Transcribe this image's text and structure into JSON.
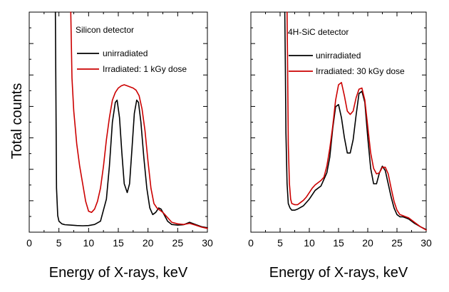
{
  "chart_data": [
    {
      "type": "line",
      "title": "Silicon detector",
      "xlabel": "Energy of X-rays, keV",
      "ylabel": "Total counts",
      "xlim": [
        0,
        30
      ],
      "ylim": [
        0,
        100
      ],
      "xticks": [
        0,
        5,
        10,
        15,
        20,
        25,
        30
      ],
      "y_tick_labels_shown": false,
      "legend_position": "upper-right",
      "series": [
        {
          "name": "unirradiated",
          "color": "#000000",
          "x": [
            4.4,
            4.5,
            4.6,
            4.8,
            5.0,
            5.5,
            6,
            7,
            8,
            9,
            10,
            11,
            12,
            13,
            13.5,
            14,
            14.5,
            14.8,
            15.2,
            15.6,
            16,
            16.5,
            16.9,
            17.3,
            17.7,
            18.1,
            18.4,
            18.8,
            19.3,
            19.8,
            20.3,
            20.8,
            21.3,
            21.8,
            22.2,
            22.7,
            23.3,
            24,
            25,
            26,
            27,
            28,
            29,
            30
          ],
          "values": [
            100,
            60,
            20,
            7.5,
            5.0,
            3.8,
            3.4,
            3.2,
            3.0,
            2.9,
            3.0,
            3.5,
            5,
            15,
            30,
            50,
            59,
            60,
            52,
            36,
            22,
            18,
            22,
            38,
            54,
            60,
            59,
            50,
            34,
            20,
            11,
            8,
            9,
            11,
            10.5,
            8,
            5,
            3.5,
            3.2,
            3.4,
            4.5,
            3.5,
            2.5,
            2.0
          ]
        },
        {
          "name": "Irradiated: 1 kGy dose",
          "color": "#cc0000",
          "x": [
            7.0,
            7.2,
            7.5,
            8,
            8.5,
            9,
            9.5,
            10,
            10.5,
            11,
            11.5,
            12,
            12.5,
            13,
            13.5,
            14,
            14.5,
            15,
            15.5,
            16,
            16.5,
            17,
            17.5,
            18,
            18.5,
            19,
            19.5,
            20,
            20.5,
            21,
            21.5,
            22,
            22.5,
            23,
            24,
            25,
            26,
            27,
            28,
            29,
            30
          ],
          "values": [
            100,
            70,
            55,
            40,
            30,
            22,
            14,
            9.5,
            9,
            10.5,
            14,
            20,
            30,
            42,
            52,
            60,
            63.5,
            65.5,
            66.5,
            67,
            66.5,
            66,
            65.5,
            64.5,
            62,
            56,
            46,
            32,
            20,
            13,
            11,
            10,
            9,
            7.5,
            4.5,
            3.8,
            3.5,
            4.0,
            3.2,
            2.3,
            1.7
          ]
        }
      ]
    },
    {
      "type": "line",
      "title": "4H-SiC detector",
      "xlabel": "Energy of X-rays, keV",
      "ylabel": "",
      "xlim": [
        0,
        30
      ],
      "ylim": [
        0,
        100
      ],
      "xticks": [
        0,
        5,
        10,
        15,
        20,
        25,
        30
      ],
      "y_tick_labels_shown": false,
      "legend_position": "upper-right",
      "series": [
        {
          "name": "unirradiated",
          "color": "#000000",
          "x": [
            5.8,
            5.9,
            6.0,
            6.2,
            6.4,
            6.7,
            7.0,
            7.5,
            8,
            9,
            10,
            11,
            12,
            13,
            13.5,
            14,
            14.5,
            15,
            15.5,
            16,
            16.5,
            17,
            17.5,
            18,
            18.5,
            19,
            19.5,
            20,
            20.5,
            21,
            21.5,
            22,
            22.5,
            23,
            23.5,
            24,
            24.5,
            25,
            25.5,
            26,
            26.5,
            27,
            28,
            29,
            30
          ],
          "values": [
            100,
            75,
            45,
            22,
            13,
            11,
            10,
            10,
            10.5,
            12,
            15,
            19,
            21,
            27,
            34,
            47,
            57,
            58,
            52,
            43,
            36,
            36,
            42,
            53,
            63,
            64,
            59,
            43,
            29,
            22,
            22,
            27,
            30,
            28,
            22,
            16,
            11,
            8,
            7,
            7,
            6.5,
            6,
            4,
            2.5,
            1.2
          ]
        },
        {
          "name": "Irradiated: 30 kGy dose",
          "color": "#cc0000",
          "x": [
            6.2,
            6.3,
            6.4,
            6.6,
            6.8,
            7.0,
            7.5,
            8,
            8.5,
            9,
            9.5,
            10,
            10.5,
            11,
            11.5,
            12,
            12.5,
            13,
            13.5,
            14,
            14.5,
            15,
            15.5,
            16,
            16.5,
            17,
            17.5,
            18,
            18.5,
            19,
            19.5,
            20,
            20.5,
            21,
            21.5,
            22,
            22.5,
            23,
            23.5,
            24,
            24.5,
            25,
            25.5,
            26,
            26.5,
            27,
            28,
            29,
            30
          ],
          "values": [
            100,
            70,
            40,
            22,
            15,
            13,
            12.5,
            12.5,
            13.5,
            14.5,
            16,
            18,
            20,
            21.5,
            22.5,
            23.5,
            25,
            30,
            38,
            48,
            60,
            67,
            68,
            62,
            55,
            53.5,
            55,
            61,
            65,
            65.5,
            60,
            48,
            36,
            29,
            26.5,
            27,
            29.5,
            29.5,
            26.5,
            20,
            14,
            10,
            8,
            7.5,
            7,
            6.5,
            4.5,
            2.5,
            1.0
          ]
        }
      ]
    }
  ]
}
